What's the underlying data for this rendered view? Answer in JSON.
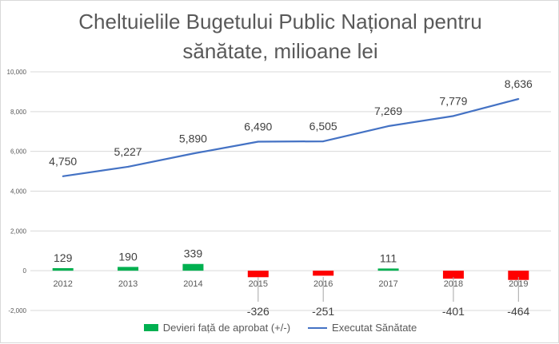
{
  "chart_data": {
    "type": "bar+line",
    "title_line1": "Cheltuielile Bugetului Public Național pentru",
    "title_line2": "sănătate, milioane lei",
    "categories": [
      "2012",
      "2013",
      "2014",
      "2015",
      "2016",
      "2017",
      "2018",
      "2019"
    ],
    "series": [
      {
        "name": "Devieri față de aprobat (+/-)",
        "type": "bar",
        "values": [
          129,
          190,
          339,
          -326,
          -251,
          111,
          -401,
          -464
        ],
        "labels": [
          "129",
          "190",
          "339",
          "-326",
          "-251",
          "111",
          "-401",
          "-464"
        ]
      },
      {
        "name": "Executat Sănătate",
        "type": "line",
        "values": [
          4750,
          5227,
          5890,
          6490,
          6505,
          7269,
          7779,
          8636
        ],
        "labels": [
          "4,750",
          "5,227",
          "5,890",
          "6,490",
          "6,505",
          "7,269",
          "7,779",
          "8,636"
        ]
      }
    ],
    "yticks": [
      -2000,
      0,
      2000,
      4000,
      6000,
      8000,
      10000
    ],
    "ytick_labels": [
      "-2,000",
      "0",
      "2,000",
      "4,000",
      "6,000",
      "8,000",
      "10,000"
    ],
    "ylim": [
      -2000,
      10000
    ],
    "grid": true,
    "legend_position": "bottom"
  },
  "colors": {
    "positive_bar": "#00b050",
    "negative_bar": "#ff0000",
    "line": "#4472c4",
    "grid": "#d9d9d9"
  }
}
